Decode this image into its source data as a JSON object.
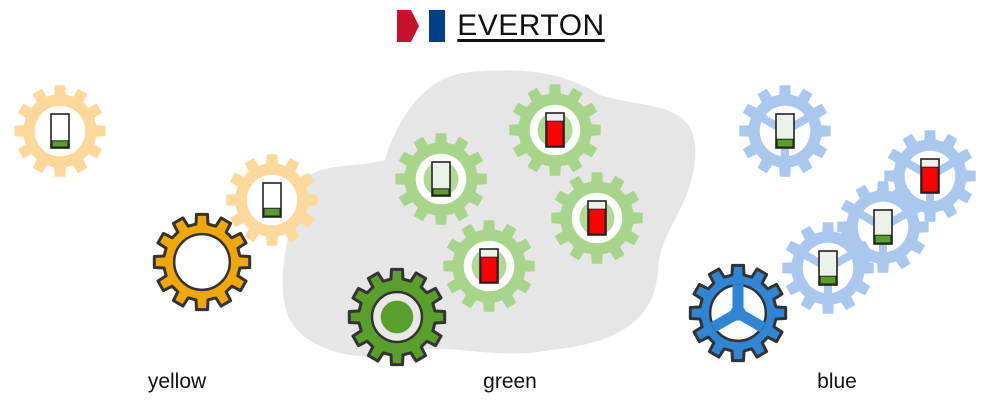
{
  "header": {
    "title": "EVERTON",
    "flag_colors": {
      "left": "#c8102e",
      "right": "#003f87"
    }
  },
  "groups": [
    {
      "key": "yellow",
      "label": "yellow",
      "colors": {
        "pale": "#fcd99a",
        "main": "#f0a800"
      }
    },
    {
      "key": "green",
      "label": "green",
      "colors": {
        "pale": "#a8d48c",
        "main": "#5a9e2c"
      }
    },
    {
      "key": "blue",
      "label": "blue",
      "colors": {
        "pale": "#aac8ee",
        "main": "#2e86d4"
      }
    }
  ],
  "indicator_colors": {
    "low": "#5a9e2c",
    "high": "#ff0000",
    "empty": "#ffffff"
  },
  "background_blob_color": "#e6e6e6",
  "gears": [
    {
      "id": "yellow-gear-1",
      "group": "yellow",
      "variant": "pale",
      "level": 0.2,
      "status": "low"
    },
    {
      "id": "yellow-gear-2",
      "group": "yellow",
      "variant": "pale",
      "level": 0.25,
      "status": "low"
    },
    {
      "id": "yellow-main",
      "group": "yellow",
      "variant": "main",
      "hub": "ring"
    },
    {
      "id": "green-gear-1",
      "group": "green",
      "variant": "pale",
      "level": 0.2,
      "status": "low"
    },
    {
      "id": "green-gear-2",
      "group": "green",
      "variant": "pale",
      "level": 0.8,
      "status": "high"
    },
    {
      "id": "green-gear-3",
      "group": "green",
      "variant": "pale",
      "level": 0.8,
      "status": "high"
    },
    {
      "id": "green-gear-4",
      "group": "green",
      "variant": "pale",
      "level": 0.8,
      "status": "high"
    },
    {
      "id": "green-main",
      "group": "green",
      "variant": "main",
      "hub": "dot"
    },
    {
      "id": "blue-gear-1",
      "group": "blue",
      "variant": "pale",
      "level": 0.25,
      "status": "low"
    },
    {
      "id": "blue-gear-2",
      "group": "blue",
      "variant": "pale",
      "level": 0.8,
      "status": "high"
    },
    {
      "id": "blue-gear-3",
      "group": "blue",
      "variant": "pale",
      "level": 0.25,
      "status": "low"
    },
    {
      "id": "blue-gear-4",
      "group": "blue",
      "variant": "pale",
      "level": 0.25,
      "status": "low"
    },
    {
      "id": "blue-main",
      "group": "blue",
      "variant": "main",
      "hub": "spokes"
    }
  ]
}
